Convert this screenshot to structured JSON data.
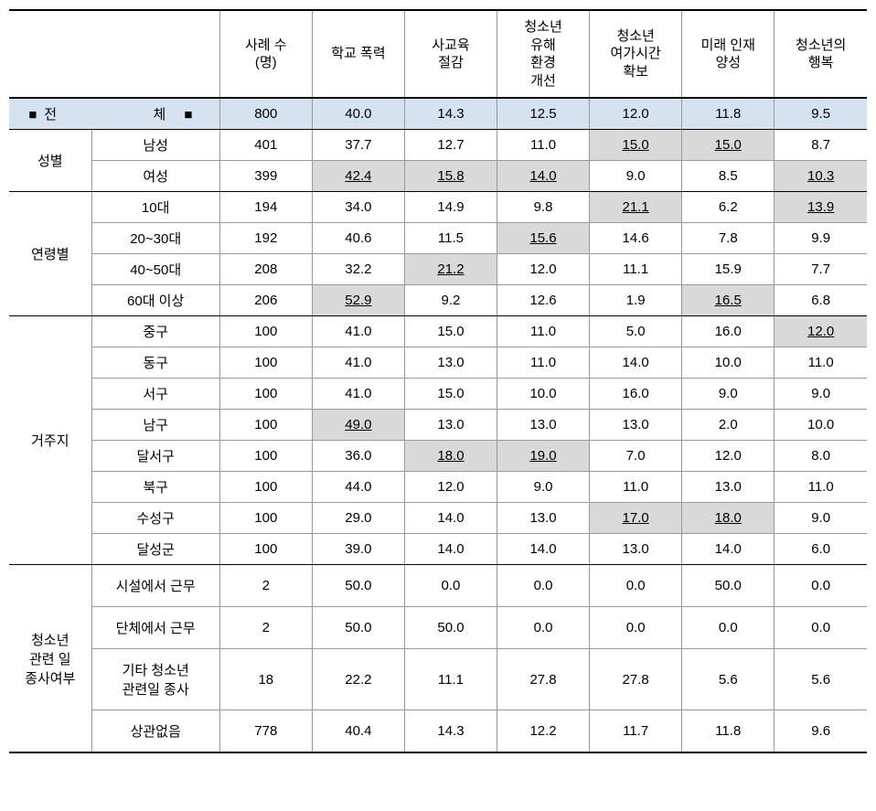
{
  "colors": {
    "highlight_bg": "#d9d9d9",
    "total_bg": "#d5e3f0",
    "border_major": "#000000",
    "border_minor": "#999999",
    "background": "#ffffff"
  },
  "typography": {
    "font_family": "Malgun Gothic",
    "cell_font_size": 15
  },
  "headers": {
    "col0": "",
    "col1": "사례 수\n(명)",
    "col2": "학교 폭력",
    "col3": "사교육\n절감",
    "col4": "청소년\n유해\n환경\n개선",
    "col5": "청소년\n여가시간\n확보",
    "col6": "미래 인재\n양성",
    "col7": "청소년의\n행복"
  },
  "total": {
    "label_prefix": "■전",
    "label_suffix": "체 ■",
    "cases": "800",
    "v1": "40.0",
    "v2": "14.3",
    "v3": "12.5",
    "v4": "12.0",
    "v5": "11.8",
    "v6": "9.5"
  },
  "groups": [
    {
      "label": "성별",
      "rows": [
        {
          "sub": "남성",
          "cases": "401",
          "cells": [
            {
              "v": "37.7",
              "hl": false
            },
            {
              "v": "12.7",
              "hl": false
            },
            {
              "v": "11.0",
              "hl": false
            },
            {
              "v": "15.0",
              "hl": true
            },
            {
              "v": "15.0",
              "hl": true
            },
            {
              "v": "8.7",
              "hl": false
            }
          ]
        },
        {
          "sub": "여성",
          "cases": "399",
          "cells": [
            {
              "v": "42.4",
              "hl": true
            },
            {
              "v": "15.8",
              "hl": true
            },
            {
              "v": "14.0",
              "hl": true
            },
            {
              "v": "9.0",
              "hl": false
            },
            {
              "v": "8.5",
              "hl": false
            },
            {
              "v": "10.3",
              "hl": true
            }
          ]
        }
      ]
    },
    {
      "label": "연령별",
      "rows": [
        {
          "sub": "10대",
          "cases": "194",
          "cells": [
            {
              "v": "34.0",
              "hl": false
            },
            {
              "v": "14.9",
              "hl": false
            },
            {
              "v": "9.8",
              "hl": false
            },
            {
              "v": "21.1",
              "hl": true
            },
            {
              "v": "6.2",
              "hl": false
            },
            {
              "v": "13.9",
              "hl": true
            }
          ]
        },
        {
          "sub": "20~30대",
          "cases": "192",
          "cells": [
            {
              "v": "40.6",
              "hl": false
            },
            {
              "v": "11.5",
              "hl": false
            },
            {
              "v": "15.6",
              "hl": true
            },
            {
              "v": "14.6",
              "hl": false
            },
            {
              "v": "7.8",
              "hl": false
            },
            {
              "v": "9.9",
              "hl": false
            }
          ]
        },
        {
          "sub": "40~50대",
          "cases": "208",
          "cells": [
            {
              "v": "32.2",
              "hl": false
            },
            {
              "v": "21.2",
              "hl": true
            },
            {
              "v": "12.0",
              "hl": false
            },
            {
              "v": "11.1",
              "hl": false
            },
            {
              "v": "15.9",
              "hl": false
            },
            {
              "v": "7.7",
              "hl": false
            }
          ]
        },
        {
          "sub": "60대 이상",
          "cases": "206",
          "cells": [
            {
              "v": "52.9",
              "hl": true
            },
            {
              "v": "9.2",
              "hl": false
            },
            {
              "v": "12.6",
              "hl": false
            },
            {
              "v": "1.9",
              "hl": false
            },
            {
              "v": "16.5",
              "hl": true
            },
            {
              "v": "6.8",
              "hl": false
            }
          ]
        }
      ]
    },
    {
      "label": "거주지",
      "rows": [
        {
          "sub": "중구",
          "cases": "100",
          "cells": [
            {
              "v": "41.0",
              "hl": false
            },
            {
              "v": "15.0",
              "hl": false
            },
            {
              "v": "11.0",
              "hl": false
            },
            {
              "v": "5.0",
              "hl": false
            },
            {
              "v": "16.0",
              "hl": false
            },
            {
              "v": "12.0",
              "hl": true
            }
          ]
        },
        {
          "sub": "동구",
          "cases": "100",
          "cells": [
            {
              "v": "41.0",
              "hl": false
            },
            {
              "v": "13.0",
              "hl": false
            },
            {
              "v": "11.0",
              "hl": false
            },
            {
              "v": "14.0",
              "hl": false
            },
            {
              "v": "10.0",
              "hl": false
            },
            {
              "v": "11.0",
              "hl": false
            }
          ]
        },
        {
          "sub": "서구",
          "cases": "100",
          "cells": [
            {
              "v": "41.0",
              "hl": false
            },
            {
              "v": "15.0",
              "hl": false
            },
            {
              "v": "10.0",
              "hl": false
            },
            {
              "v": "16.0",
              "hl": false
            },
            {
              "v": "9.0",
              "hl": false
            },
            {
              "v": "9.0",
              "hl": false
            }
          ]
        },
        {
          "sub": "남구",
          "cases": "100",
          "cells": [
            {
              "v": "49.0",
              "hl": true
            },
            {
              "v": "13.0",
              "hl": false
            },
            {
              "v": "13.0",
              "hl": false
            },
            {
              "v": "13.0",
              "hl": false
            },
            {
              "v": "2.0",
              "hl": false
            },
            {
              "v": "10.0",
              "hl": false
            }
          ]
        },
        {
          "sub": "달서구",
          "cases": "100",
          "cells": [
            {
              "v": "36.0",
              "hl": false
            },
            {
              "v": "18.0",
              "hl": true
            },
            {
              "v": "19.0",
              "hl": true
            },
            {
              "v": "7.0",
              "hl": false
            },
            {
              "v": "12.0",
              "hl": false
            },
            {
              "v": "8.0",
              "hl": false
            }
          ]
        },
        {
          "sub": "북구",
          "cases": "100",
          "cells": [
            {
              "v": "44.0",
              "hl": false
            },
            {
              "v": "12.0",
              "hl": false
            },
            {
              "v": "9.0",
              "hl": false
            },
            {
              "v": "11.0",
              "hl": false
            },
            {
              "v": "13.0",
              "hl": false
            },
            {
              "v": "11.0",
              "hl": false
            }
          ]
        },
        {
          "sub": "수성구",
          "cases": "100",
          "cells": [
            {
              "v": "29.0",
              "hl": false
            },
            {
              "v": "14.0",
              "hl": false
            },
            {
              "v": "13.0",
              "hl": false
            },
            {
              "v": "17.0",
              "hl": true
            },
            {
              "v": "18.0",
              "hl": true
            },
            {
              "v": "9.0",
              "hl": false
            }
          ]
        },
        {
          "sub": "달성군",
          "cases": "100",
          "cells": [
            {
              "v": "39.0",
              "hl": false
            },
            {
              "v": "14.0",
              "hl": false
            },
            {
              "v": "14.0",
              "hl": false
            },
            {
              "v": "13.0",
              "hl": false
            },
            {
              "v": "14.0",
              "hl": false
            },
            {
              "v": "6.0",
              "hl": false
            }
          ]
        }
      ]
    },
    {
      "label": "청소년\n관련 일\n종사여부",
      "tall": true,
      "rows": [
        {
          "sub": "시설에서 근무",
          "cases": "2",
          "cells": [
            {
              "v": "50.0",
              "hl": false
            },
            {
              "v": "0.0",
              "hl": false
            },
            {
              "v": "0.0",
              "hl": false
            },
            {
              "v": "0.0",
              "hl": false
            },
            {
              "v": "50.0",
              "hl": false
            },
            {
              "v": "0.0",
              "hl": false
            }
          ]
        },
        {
          "sub": "단체에서 근무",
          "cases": "2",
          "cells": [
            {
              "v": "50.0",
              "hl": false
            },
            {
              "v": "50.0",
              "hl": false
            },
            {
              "v": "0.0",
              "hl": false
            },
            {
              "v": "0.0",
              "hl": false
            },
            {
              "v": "0.0",
              "hl": false
            },
            {
              "v": "0.0",
              "hl": false
            }
          ]
        },
        {
          "sub": "기타 청소년\n관련일 종사",
          "cases": "18",
          "cells": [
            {
              "v": "22.2",
              "hl": false
            },
            {
              "v": "11.1",
              "hl": false
            },
            {
              "v": "27.8",
              "hl": false
            },
            {
              "v": "27.8",
              "hl": false
            },
            {
              "v": "5.6",
              "hl": false
            },
            {
              "v": "5.6",
              "hl": false
            }
          ]
        },
        {
          "sub": "상관없음",
          "cases": "778",
          "cells": [
            {
              "v": "40.4",
              "hl": false
            },
            {
              "v": "14.3",
              "hl": false
            },
            {
              "v": "12.2",
              "hl": false
            },
            {
              "v": "11.7",
              "hl": false
            },
            {
              "v": "11.8",
              "hl": false
            },
            {
              "v": "9.6",
              "hl": false
            }
          ]
        }
      ]
    }
  ]
}
